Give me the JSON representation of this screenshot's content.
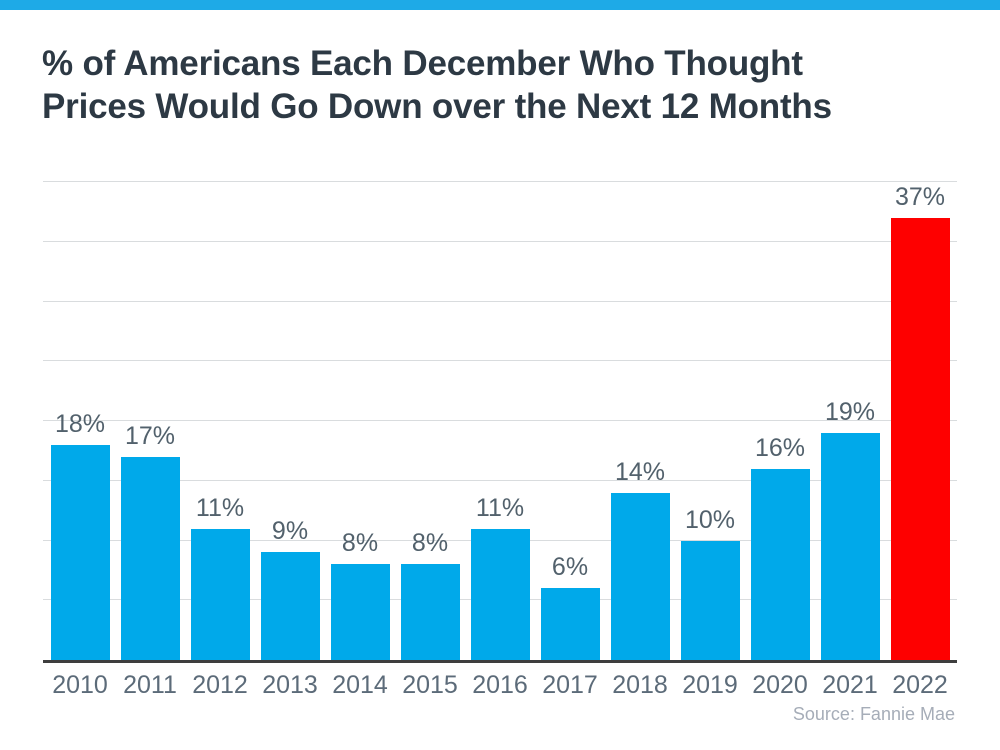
{
  "colors": {
    "background": "#FFFFFF",
    "top_strip": "#1EAAE7",
    "bar_blue": "#00A9EA",
    "bar_red": "#FE0000",
    "title_text": "#2D3944",
    "value_label": "#52616C",
    "axis_label": "#5C6B79",
    "gridline": "#D9DCDE",
    "axis_line": "#3E3E3E",
    "source_text": "#A6ADB8"
  },
  "title": {
    "line1": "% of Americans Each December Who Thought",
    "line2": "Prices Would Go Down over the Next 12 Months"
  },
  "source": "Source: Fannie Mae",
  "chart_data": {
    "type": "bar",
    "title": "% of Americans Each December Who Thought Prices Would Go Down over the Next 12 Months",
    "categories": [
      "2010",
      "2011",
      "2012",
      "2013",
      "2014",
      "2015",
      "2016",
      "2017",
      "2018",
      "2019",
      "2020",
      "2021",
      "2022"
    ],
    "values": [
      18,
      17,
      11,
      9,
      8,
      8,
      11,
      6,
      14,
      10,
      16,
      19,
      37
    ],
    "value_labels": [
      "18%",
      "17%",
      "11%",
      "9%",
      "8%",
      "8%",
      "11%",
      "6%",
      "14%",
      "10%",
      "16%",
      "19%",
      "37%"
    ],
    "highlight_index": 12,
    "highlight_category": "2022",
    "xlabel": "",
    "ylabel": "",
    "ylim": [
      0,
      40
    ],
    "grid_step": 5,
    "grid": true,
    "legend": false,
    "source": "Fannie Mae"
  }
}
